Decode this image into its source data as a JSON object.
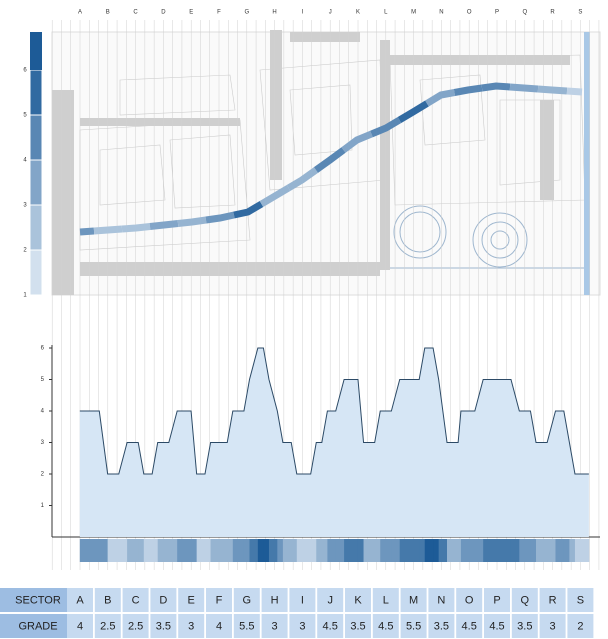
{
  "chart_data": {
    "type": "area",
    "sectors": [
      "A",
      "B",
      "C",
      "D",
      "E",
      "F",
      "G",
      "H",
      "I",
      "J",
      "K",
      "L",
      "M",
      "N",
      "O",
      "P",
      "Q",
      "R",
      "S"
    ],
    "x": [
      0,
      0.7,
      1.0,
      1.4,
      1.7,
      2.1,
      2.3,
      2.6,
      2.8,
      3.2,
      3.5,
      4.0,
      4.2,
      4.5,
      4.7,
      5.3,
      5.5,
      5.9,
      6.1,
      6.4,
      6.6,
      6.8,
      7.1,
      7.3,
      7.6,
      7.8,
      8.3,
      8.5,
      8.7,
      8.9,
      9.2,
      9.5,
      10.0,
      10.2,
      10.6,
      10.8,
      11.2,
      11.5,
      12.2,
      12.4,
      12.7,
      12.9,
      13.2,
      13.6,
      13.7,
      14.2,
      14.5,
      15.5,
      15.8,
      16.2,
      16.4,
      16.8,
      17.1,
      17.4,
      17.6,
      17.8,
      18.3
    ],
    "values": [
      4,
      4,
      2,
      2,
      3,
      3,
      2,
      2,
      3,
      3,
      4,
      4,
      2,
      2,
      3,
      3,
      4,
      4,
      5,
      6,
      6,
      5,
      4,
      3,
      3,
      2,
      2,
      3,
      3,
      4,
      4,
      5,
      5,
      3,
      3,
      4,
      4,
      5,
      5,
      6,
      6,
      5,
      3,
      3,
      4,
      4,
      5,
      5,
      4,
      4,
      3,
      3,
      4,
      4,
      3,
      2,
      2
    ],
    "xlim": [
      -1,
      18.7
    ],
    "ylim": [
      0,
      6
    ],
    "yticks": [
      1,
      2,
      3,
      4,
      5,
      6
    ],
    "color": "#d6e6f5",
    "line_color": "#2c4a66",
    "scale_colors": [
      "#e6eff8",
      "#1d5b97"
    ]
  },
  "map_legend": {
    "ticks": [
      1,
      2,
      3,
      4,
      5,
      6
    ]
  },
  "table": {
    "rows": [
      [
        "SECTOR",
        "A",
        "B",
        "C",
        "D",
        "E",
        "F",
        "G",
        "H",
        "I",
        "J",
        "K",
        "L",
        "M",
        "N",
        "O",
        "P",
        "Q",
        "R",
        "S"
      ],
      [
        "GRADE",
        4,
        2.5,
        2.5,
        3.5,
        3,
        4,
        5.5,
        3,
        3,
        4.5,
        3.5,
        4.5,
        5.5,
        3.5,
        4.5,
        4.5,
        3.5,
        3,
        2
      ]
    ]
  }
}
